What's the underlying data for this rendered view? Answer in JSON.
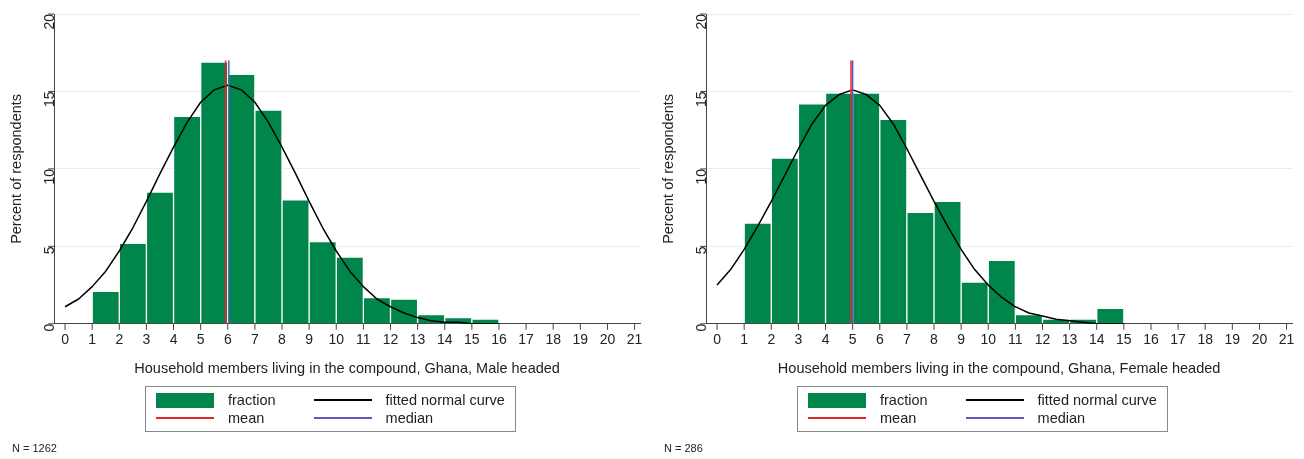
{
  "chart_data": [
    {
      "type": "histogram",
      "xlabel": "Household members living in the compound, Ghana, Male headed",
      "ylabel": "Percent of respondents",
      "bins": [
        1,
        2,
        3,
        4,
        5,
        6,
        7,
        8,
        9,
        10,
        11,
        12,
        13,
        14,
        15,
        16
      ],
      "series": [
        {
          "name": "fraction",
          "color": "#00854a",
          "values": [
            2.1,
            5.2,
            8.5,
            13.4,
            16.9,
            16.1,
            13.8,
            8.0,
            5.3,
            4.3,
            1.7,
            1.6,
            0.6,
            0.4,
            0.3
          ]
        },
        {
          "name": "fitted normal curve",
          "type": "line",
          "color": "#000000",
          "x": [
            0,
            0.5,
            1,
            1.5,
            2,
            2.5,
            3,
            3.5,
            4,
            4.5,
            5,
            5.5,
            6,
            6.5,
            7,
            7.5,
            8,
            8.5,
            9,
            9.5,
            10,
            10.5,
            11,
            11.5,
            12,
            12.5,
            13,
            13.5,
            14,
            14.5,
            15,
            15.5,
            16
          ],
          "values": [
            1.1,
            1.6,
            2.4,
            3.4,
            4.7,
            6.2,
            7.9,
            9.7,
            11.4,
            13.0,
            14.3,
            15.1,
            15.4,
            15.1,
            14.3,
            13.0,
            11.4,
            9.7,
            7.9,
            6.2,
            4.7,
            3.4,
            2.4,
            1.6,
            1.1,
            0.7,
            0.4,
            0.2,
            0.1,
            0.1,
            0.0,
            0.0,
            0.0
          ]
        },
        {
          "name": "mean",
          "type": "line",
          "color": "#e8242a",
          "x": [
            5.92,
            5.92
          ],
          "values": [
            0,
            17
          ]
        },
        {
          "name": "median",
          "type": "line",
          "color": "#5b5bb5",
          "x": [
            6.04,
            6.04
          ],
          "values": [
            0,
            17
          ]
        }
      ],
      "xlim": [
        -0.4,
        21.2
      ],
      "xticks": [
        0,
        1,
        2,
        3,
        4,
        5,
        6,
        7,
        8,
        9,
        10,
        11,
        12,
        13,
        14,
        15,
        16,
        17,
        18,
        19,
        20,
        21
      ],
      "ylim": [
        0,
        20
      ],
      "yticks": [
        0,
        5,
        10,
        15,
        20
      ],
      "grid": "y",
      "legend": "bottom",
      "annotations": [
        "N = 1262"
      ]
    },
    {
      "type": "histogram",
      "xlabel": "Household members living in the compound, Ghana, Female headed",
      "ylabel": "Percent of respondents",
      "bins": [
        1,
        2,
        3,
        4,
        5,
        6,
        7,
        8,
        9,
        10,
        11,
        12,
        13,
        14,
        15
      ],
      "series": [
        {
          "name": "fraction",
          "color": "#00854a",
          "values": [
            6.5,
            10.7,
            14.2,
            14.9,
            14.9,
            13.2,
            7.2,
            7.9,
            2.7,
            4.1,
            0.6,
            0.3,
            0.3,
            1.0
          ]
        },
        {
          "name": "fitted normal curve",
          "type": "line",
          "color": "#000000",
          "x": [
            0,
            0.5,
            1,
            1.5,
            2,
            2.5,
            3,
            3.5,
            4,
            4.5,
            5,
            5.5,
            6,
            6.5,
            7,
            7.5,
            8,
            8.5,
            9,
            9.5,
            10,
            10.5,
            11,
            11.5,
            12,
            12.5,
            13,
            13.5,
            14,
            14.5,
            15
          ],
          "values": [
            2.5,
            3.5,
            4.8,
            6.3,
            7.9,
            9.6,
            11.3,
            12.9,
            14.1,
            14.8,
            15.1,
            14.8,
            14.1,
            12.9,
            11.3,
            9.6,
            7.9,
            6.3,
            4.8,
            3.5,
            2.5,
            1.7,
            1.1,
            0.7,
            0.5,
            0.3,
            0.2,
            0.1,
            0.0,
            0.0,
            0.0
          ]
        },
        {
          "name": "mean",
          "type": "line",
          "color": "#e8242a",
          "x": [
            4.94,
            4.94
          ],
          "values": [
            0,
            17
          ]
        },
        {
          "name": "median",
          "type": "line",
          "color": "#5b5bb5",
          "x": [
            5,
            5
          ],
          "values": [
            0,
            17
          ]
        }
      ],
      "xlim": [
        -0.4,
        21.2
      ],
      "xticks": [
        0,
        1,
        2,
        3,
        4,
        5,
        6,
        7,
        8,
        9,
        10,
        11,
        12,
        13,
        14,
        15,
        16,
        17,
        18,
        19,
        20,
        21
      ],
      "ylim": [
        0,
        20
      ],
      "yticks": [
        0,
        5,
        10,
        15,
        20
      ],
      "grid": "y",
      "legend": "bottom",
      "annotations": [
        "N = 286"
      ]
    }
  ]
}
